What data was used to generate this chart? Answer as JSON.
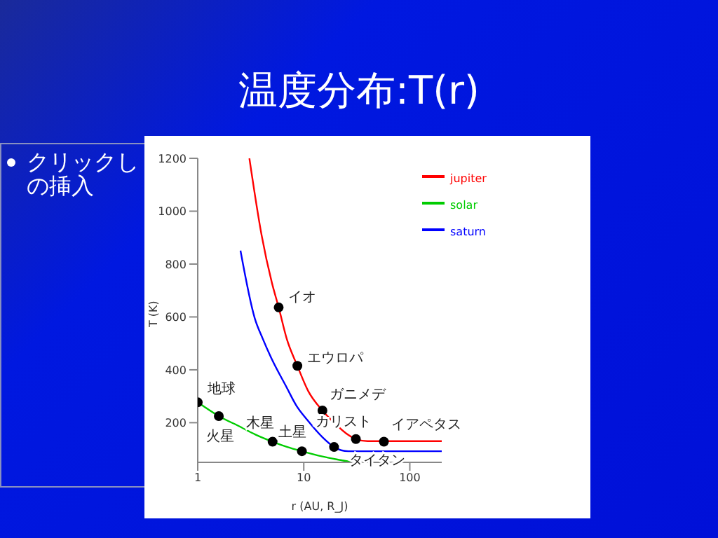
{
  "chart_data": {
    "type": "line",
    "title": "温度分布:T(r)",
    "xlabel": "r (AU, R_J)",
    "ylabel": "T (K)",
    "log": "x",
    "xlim": [
      1,
      200
    ],
    "xticks": [
      1,
      10,
      100
    ],
    "ylim": [
      50,
      1200
    ],
    "yticks": [
      200,
      400,
      600,
      800,
      1000,
      1200
    ],
    "grid": false,
    "legend": "top right",
    "line_style": "solid",
    "series": [
      {
        "name": "jupiter",
        "color": "#ff0000",
        "x": [
          3.07,
          4.0,
          5.0,
          5.8,
          6.9,
          8.7,
          11,
          15,
          19.3,
          25,
          31,
          40,
          60,
          100,
          200
        ],
        "values": [
          1200,
          910,
          730,
          636,
          518,
          415,
          320,
          246,
          200,
          160,
          138,
          130,
          130,
          130,
          130
        ]
      },
      {
        "name": "solar",
        "color": "#00cc00",
        "x": [
          1,
          1.58,
          2.5,
          3.5,
          5.08,
          7,
          9.6,
          15,
          20,
          30
        ],
        "values": [
          277,
          225,
          185,
          155,
          128,
          108,
          92,
          72,
          62,
          50
        ]
      },
      {
        "name": "saturn",
        "color": "#0000ff",
        "x": [
          2.53,
          3.45,
          4.1,
          5.0,
          6.8,
          8.5,
          10.8,
          15,
          19.3,
          26.3,
          40,
          100,
          200
        ],
        "values": [
          851,
          595,
          518,
          440,
          338,
          265,
          210,
          145,
          108,
          92,
          92,
          92,
          92
        ]
      },
      {
        "type": "scatter",
        "color": "#000000",
        "x": [
          1,
          1.58,
          5.08,
          9.6,
          5.8,
          8.7,
          15,
          31,
          19.3,
          57
        ],
        "values": [
          277,
          225,
          128,
          92,
          636,
          415,
          246,
          138,
          108,
          128
        ]
      }
    ],
    "annotations": [
      {
        "text": "地球",
        "x": 1,
        "y": 277
      },
      {
        "text": "火星",
        "x": 1.58,
        "y": 225
      },
      {
        "text": "木星",
        "x": 5.08,
        "y": 128
      },
      {
        "text": "土星",
        "x": 9.6,
        "y": 92
      },
      {
        "text": "イオ",
        "x": 5.8,
        "y": 636
      },
      {
        "text": "エウロパ",
        "x": 8.7,
        "y": 415
      },
      {
        "text": "ガニメデ",
        "x": 15,
        "y": 246
      },
      {
        "text": "カリスト",
        "x": 31,
        "y": 138
      },
      {
        "text": "タイタン",
        "x": 19.3,
        "y": 108
      },
      {
        "text": "イアペタス",
        "x": 57,
        "y": 128
      },
      "クリックし",
      "の挿入"
    ]
  }
}
